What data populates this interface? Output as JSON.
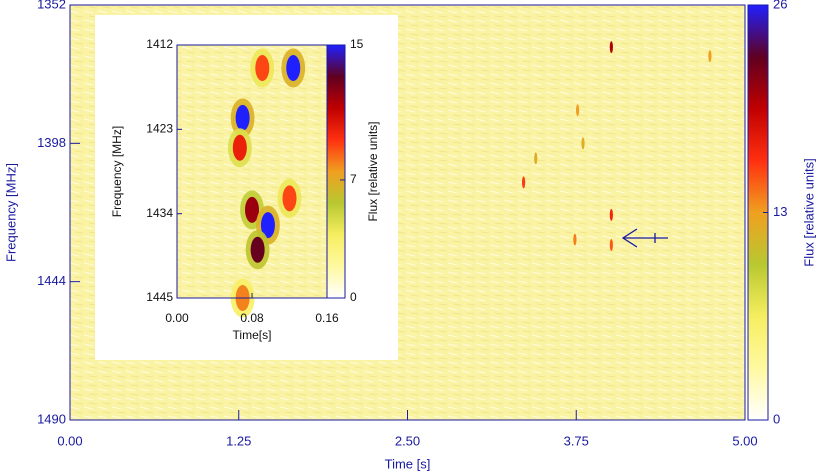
{
  "chart_data": [
    {
      "type": "heatmap",
      "xlabel": "Time [s]",
      "ylabel": "Frequency [MHz]",
      "xlim": [
        0,
        5
      ],
      "xticks": [
        {
          "value": 0,
          "label": "0.00"
        },
        {
          "value": 1.25,
          "label": "1.25"
        },
        {
          "value": 2.5,
          "label": "2.50"
        },
        {
          "value": 3.75,
          "label": "3.75"
        },
        {
          "value": 5,
          "label": "5.00"
        }
      ],
      "ylim": [
        1490,
        1352
      ],
      "yticks": [
        1352,
        1398,
        1444,
        1490
      ],
      "colorbar": {
        "label": "Flux [relative units]",
        "lim": [
          0,
          26
        ],
        "ticks": [
          0,
          13,
          26
        ]
      },
      "colormap": [
        "#ffffff",
        "#fff9a0",
        "#f6ee60",
        "#b8c830",
        "#f0a020",
        "#ff3010",
        "#c00000",
        "#600020",
        "#2020ff"
      ],
      "background": "#faf3a4",
      "points": {
        "x": [
          4.01,
          4.01,
          4.01,
          3.74,
          3.36,
          4.74,
          3.76,
          3.45,
          3.8
        ],
        "y": [
          1366,
          1421.8,
          1431.8,
          1430,
          1411,
          1369,
          1387,
          1403,
          1398
        ],
        "values": [
          20,
          17,
          15,
          14,
          16,
          13,
          13,
          12,
          12
        ]
      }
    },
    {
      "type": "heatmap",
      "xlabel": "Time[s]",
      "ylabel": "Frequency [MHz]",
      "xlim": [
        0,
        0.16
      ],
      "xticks": [
        {
          "value": 0,
          "label": "0.00"
        },
        {
          "value": 0.08,
          "label": "0.08"
        },
        {
          "value": 0.16,
          "label": "0.16"
        }
      ],
      "ylim": [
        1445,
        1412
      ],
      "yticks": [
        1412,
        1423,
        1434,
        1445
      ],
      "colorbar": {
        "label": "Flux [relative units]",
        "lim": [
          0,
          15
        ],
        "ticks": [
          0,
          7,
          15
        ]
      },
      "colormap": [
        "#ffffff",
        "#fff9a0",
        "#f6ee60",
        "#b8c830",
        "#f0a020",
        "#ff3010",
        "#c00000",
        "#600020",
        "#2020ff"
      ],
      "background": "#faf3a4",
      "points": {
        "x": [
          0.124,
          0.091,
          0.07,
          0.067,
          0.08,
          0.097,
          0.086,
          0.12,
          0.07
        ],
        "y": [
          1415,
          1415,
          1421.5,
          1425.4,
          1433.5,
          1435.5,
          1438.7,
          1432,
          1445
        ],
        "values": [
          15,
          9,
          15,
          10,
          12,
          15,
          13,
          9,
          8
        ]
      }
    }
  ]
}
